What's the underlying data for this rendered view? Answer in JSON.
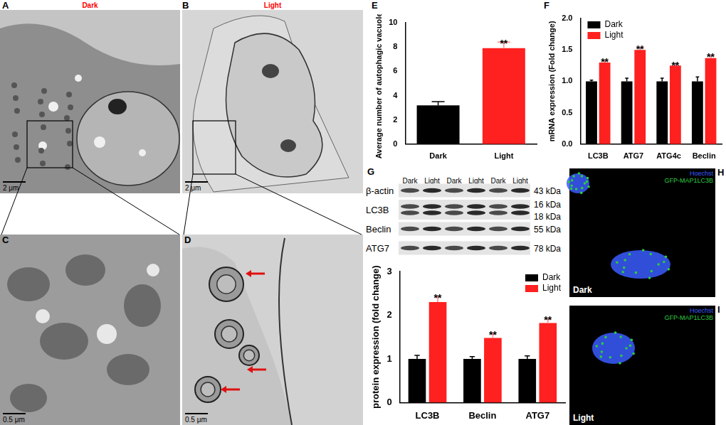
{
  "images": [
    {
      "label": "A",
      "title": "Dark",
      "scale_bar": "2 μm"
    },
    {
      "label": "B",
      "title": "Light",
      "scale_bar": "2 μm"
    },
    {
      "label": "C",
      "scale_bar": "0.5 μm"
    },
    {
      "label": "D",
      "scale_bar": "0.5 μm"
    }
  ],
  "blot": {
    "label": "G",
    "columns": [
      "Dark",
      "Light",
      "Dark",
      "Light",
      "Dark",
      "Light"
    ],
    "rows": [
      {
        "name": "β-actin",
        "sizes": [
          "43 kDa"
        ]
      },
      {
        "name": "LC3B",
        "sizes": [
          "16 kDa",
          "18 kDa"
        ]
      },
      {
        "name": "Beclin",
        "sizes": [
          "55 kDa"
        ]
      },
      {
        "name": "ATG7",
        "sizes": [
          "78 kDa"
        ]
      }
    ]
  },
  "fluorescence": [
    {
      "label": "H",
      "condition": "Dark",
      "channels": [
        {
          "name": "Hoechst",
          "color": "#3a5cff"
        },
        {
          "name": "GFP-MAP1LC3B",
          "color": "#2ecc40"
        }
      ]
    },
    {
      "label": "I",
      "condition": "Light",
      "channels": [
        {
          "name": "Hoechst",
          "color": "#3a5cff"
        },
        {
          "name": "GFP-MAP1LC3B",
          "color": "#2ecc40"
        }
      ]
    }
  ],
  "chart_data": [
    {
      "panel": "E",
      "type": "bar",
      "y_label": "Average number of autophagic vacuoles",
      "categories": [
        "Dark",
        "Light"
      ],
      "values": [
        3.2,
        7.9
      ],
      "errors": [
        0.3,
        0.5
      ],
      "annotations": [
        null,
        "**"
      ],
      "colors": [
        "#000000",
        "#ff2020"
      ],
      "ylim": [
        0,
        10
      ],
      "yticks": [
        0,
        2,
        4,
        6,
        8,
        10
      ],
      "grid": false
    },
    {
      "panel": "F",
      "type": "bar",
      "y_label": "mRNA expression (Fold change)",
      "categories": [
        "LC3B",
        "ATG7",
        "ATG4c",
        "Beclin"
      ],
      "series": [
        {
          "name": "Dark",
          "color": "#000000",
          "values": [
            1.0,
            1.0,
            1.0,
            1.0
          ],
          "errors": [
            0.02,
            0.05,
            0.05,
            0.07
          ]
        },
        {
          "name": "Light",
          "color": "#ff2020",
          "values": [
            1.3,
            1.5,
            1.25,
            1.37
          ],
          "errors": [
            0.03,
            0.04,
            0.03,
            0.04
          ],
          "annotations": [
            "**",
            "**",
            "**",
            "**"
          ]
        }
      ],
      "ylim": [
        0,
        2.0
      ],
      "yticks": [
        {
          "value": 0,
          "label": "0.0"
        },
        0.5,
        {
          "value": 1,
          "label": "1.0"
        },
        1.5,
        {
          "value": 2,
          "label": "2.0"
        }
      ],
      "legend": "upper left",
      "grid": false
    },
    {
      "type": "bar",
      "y_label": "protein expression (fold change)",
      "categories": [
        "LC3B",
        "Beclin",
        "ATG7"
      ],
      "series": [
        {
          "name": "Dark",
          "color": "#000000",
          "values": [
            1.0,
            1.0,
            1.0
          ],
          "errors": [
            0.08,
            0.05,
            0.07
          ]
        },
        {
          "name": "Light",
          "color": "#ff2020",
          "values": [
            2.3,
            1.48,
            1.82
          ],
          "errors": [
            0.13,
            0.1,
            0.1
          ],
          "annotations": [
            "**",
            "**",
            "**"
          ]
        }
      ],
      "ylim": [
        0,
        3
      ],
      "yticks": [
        0,
        1,
        2,
        3
      ],
      "legend": "upper right",
      "grid": false
    }
  ]
}
